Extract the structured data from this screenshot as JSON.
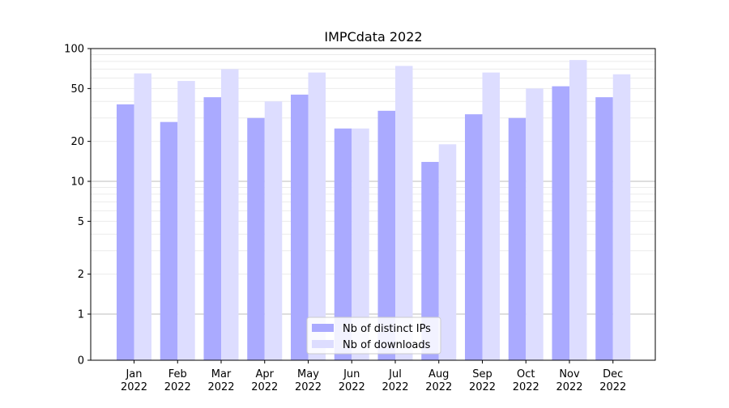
{
  "chart_data": {
    "type": "bar",
    "title": "IMPCdata 2022",
    "xlabel": "",
    "ylabel": "",
    "yscale": "symlog",
    "ylim": [
      0,
      100
    ],
    "yticks": [
      0,
      1,
      2,
      5,
      10,
      20,
      50,
      100
    ],
    "grid": true,
    "legend_position": "bottom-center",
    "categories": [
      {
        "month": "Jan",
        "year": "2022"
      },
      {
        "month": "Feb",
        "year": "2022"
      },
      {
        "month": "Mar",
        "year": "2022"
      },
      {
        "month": "Apr",
        "year": "2022"
      },
      {
        "month": "May",
        "year": "2022"
      },
      {
        "month": "Jun",
        "year": "2022"
      },
      {
        "month": "Jul",
        "year": "2022"
      },
      {
        "month": "Aug",
        "year": "2022"
      },
      {
        "month": "Sep",
        "year": "2022"
      },
      {
        "month": "Oct",
        "year": "2022"
      },
      {
        "month": "Nov",
        "year": "2022"
      },
      {
        "month": "Dec",
        "year": "2022"
      }
    ],
    "series": [
      {
        "name": "Nb of distinct IPs",
        "color": "#aaaaff",
        "values": [
          38,
          28,
          43,
          30,
          45,
          25,
          34,
          14,
          32,
          30,
          52,
          43
        ]
      },
      {
        "name": "Nb of downloads",
        "color": "#ddddff",
        "values": [
          65,
          57,
          70,
          40,
          66,
          25,
          74,
          19,
          66,
          50,
          82,
          64
        ]
      }
    ]
  }
}
